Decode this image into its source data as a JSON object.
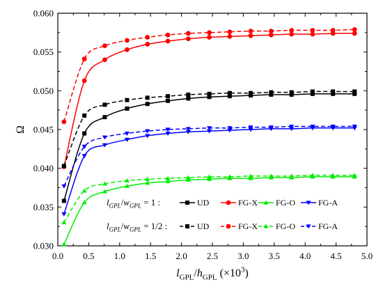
{
  "chart_data": {
    "type": "line",
    "xlabel_parts": [
      {
        "t": "l",
        "italic": true
      },
      {
        "t": "GPL",
        "sub": true
      },
      {
        "t": "/"
      },
      {
        "t": "h",
        "italic": true
      },
      {
        "t": "GPL",
        "sub": true
      },
      {
        "t": " (×10"
      },
      {
        "t": "3",
        "sup": true
      },
      {
        "t": ")"
      }
    ],
    "ylabel": "Ω",
    "xlim": [
      0.0,
      5.0
    ],
    "ylim": [
      0.03,
      0.06
    ],
    "xticks": [
      "0.0",
      "0.5",
      "1.0",
      "1.5",
      "2.0",
      "2.5",
      "3.0",
      "3.5",
      "4.0",
      "4.5",
      "5.0"
    ],
    "yticks": [
      "0.030",
      "0.035",
      "0.040",
      "0.045",
      "0.050",
      "0.055",
      "0.060"
    ],
    "grid": false,
    "legend_placement": "bottom-center",
    "legend_rows": [
      {
        "head_parts": [
          {
            "t": "l",
            "italic": true
          },
          {
            "t": "GPL",
            "sub": true,
            "italic": true
          },
          {
            "t": "/"
          },
          {
            "t": "w",
            "italic": true
          },
          {
            "t": "GPL",
            "sub": true,
            "italic": true
          },
          {
            "t": " = 1 :"
          }
        ],
        "dash": false
      },
      {
        "head_parts": [
          {
            "t": "l",
            "italic": true
          },
          {
            "t": "GPL",
            "sub": true,
            "italic": true
          },
          {
            "t": "/"
          },
          {
            "t": "w",
            "italic": true
          },
          {
            "t": "GPL",
            "sub": true,
            "italic": true
          },
          {
            "t": " = 1/2 :"
          }
        ],
        "dash": true
      }
    ],
    "series": [
      {
        "name": "UD",
        "color": "#000000",
        "marker": "square",
        "dash": false,
        "x": [
          0.1,
          0.43,
          0.76,
          1.12,
          1.45,
          1.78,
          2.11,
          2.45,
          2.78,
          3.12,
          3.45,
          3.78,
          4.12,
          4.45,
          4.8
        ],
        "y": [
          0.0358,
          0.0445,
          0.0466,
          0.0477,
          0.0483,
          0.0487,
          0.049,
          0.0492,
          0.0493,
          0.0494,
          0.0495,
          0.0495,
          0.0496,
          0.0496,
          0.0496
        ]
      },
      {
        "name": "FG-X",
        "color": "#ff0000",
        "marker": "circle",
        "dash": false,
        "x": [
          0.1,
          0.43,
          0.76,
          1.12,
          1.45,
          1.78,
          2.11,
          2.45,
          2.78,
          3.12,
          3.45,
          3.78,
          4.12,
          4.45,
          4.8
        ],
        "y": [
          0.0402,
          0.0513,
          0.054,
          0.0553,
          0.056,
          0.0564,
          0.0567,
          0.0569,
          0.057,
          0.0571,
          0.0572,
          0.0573,
          0.0573,
          0.0574,
          0.0574
        ]
      },
      {
        "name": "FG-O",
        "color": "#00ee00",
        "marker": "triangle-up",
        "dash": false,
        "x": [
          0.1,
          0.43,
          0.76,
          1.12,
          1.45,
          1.78,
          2.11,
          2.45,
          2.78,
          3.12,
          3.45,
          3.78,
          4.12,
          4.45,
          4.8
        ],
        "y": [
          0.0302,
          0.0356,
          0.037,
          0.0377,
          0.0381,
          0.0383,
          0.0385,
          0.0386,
          0.0387,
          0.0387,
          0.0388,
          0.0388,
          0.0389,
          0.0389,
          0.0389
        ]
      },
      {
        "name": "FG-A",
        "color": "#0000ff",
        "marker": "triangle-down",
        "dash": false,
        "x": [
          0.1,
          0.43,
          0.76,
          1.12,
          1.45,
          1.78,
          2.11,
          2.45,
          2.78,
          3.12,
          3.45,
          3.78,
          4.12,
          4.45,
          4.8
        ],
        "y": [
          0.0341,
          0.0416,
          0.043,
          0.0437,
          0.0442,
          0.0445,
          0.0447,
          0.0448,
          0.0449,
          0.045,
          0.0451,
          0.0451,
          0.0452,
          0.0452,
          0.0452
        ]
      },
      {
        "name": "UD",
        "color": "#000000",
        "marker": "square",
        "dash": true,
        "x": [
          0.1,
          0.43,
          0.76,
          1.12,
          1.45,
          1.78,
          2.11,
          2.45,
          2.78,
          3.12,
          3.45,
          3.78,
          4.12,
          4.45,
          4.8
        ],
        "y": [
          0.0403,
          0.0468,
          0.0482,
          0.0488,
          0.0491,
          0.0493,
          0.0495,
          0.0496,
          0.0497,
          0.0497,
          0.0498,
          0.0498,
          0.0499,
          0.0499,
          0.0499
        ]
      },
      {
        "name": "FG-X",
        "color": "#ff0000",
        "marker": "circle",
        "dash": true,
        "x": [
          0.1,
          0.43,
          0.76,
          1.12,
          1.45,
          1.78,
          2.11,
          2.45,
          2.78,
          3.12,
          3.45,
          3.78,
          4.12,
          4.45,
          4.8
        ],
        "y": [
          0.046,
          0.0541,
          0.0558,
          0.0565,
          0.0569,
          0.0572,
          0.0574,
          0.0575,
          0.0576,
          0.0577,
          0.0577,
          0.0578,
          0.0578,
          0.0578,
          0.0579
        ]
      },
      {
        "name": "FG-O",
        "color": "#00ee00",
        "marker": "triangle-up",
        "dash": true,
        "x": [
          0.1,
          0.43,
          0.76,
          1.12,
          1.45,
          1.78,
          2.11,
          2.45,
          2.78,
          3.12,
          3.45,
          3.78,
          4.12,
          4.45,
          4.8
        ],
        "y": [
          0.033,
          0.0371,
          0.038,
          0.0384,
          0.0386,
          0.0387,
          0.0388,
          0.0389,
          0.0389,
          0.039,
          0.039,
          0.039,
          0.0391,
          0.0391,
          0.0391
        ]
      },
      {
        "name": "FG-A",
        "color": "#0000ff",
        "marker": "triangle-down",
        "dash": true,
        "x": [
          0.1,
          0.43,
          0.76,
          1.12,
          1.45,
          1.78,
          2.11,
          2.45,
          2.78,
          3.12,
          3.45,
          3.78,
          4.12,
          4.45,
          4.8
        ],
        "y": [
          0.0377,
          0.0428,
          0.044,
          0.0445,
          0.0448,
          0.045,
          0.0451,
          0.0452,
          0.0452,
          0.0453,
          0.0453,
          0.0454,
          0.0454,
          0.0454,
          0.0454
        ]
      }
    ]
  }
}
